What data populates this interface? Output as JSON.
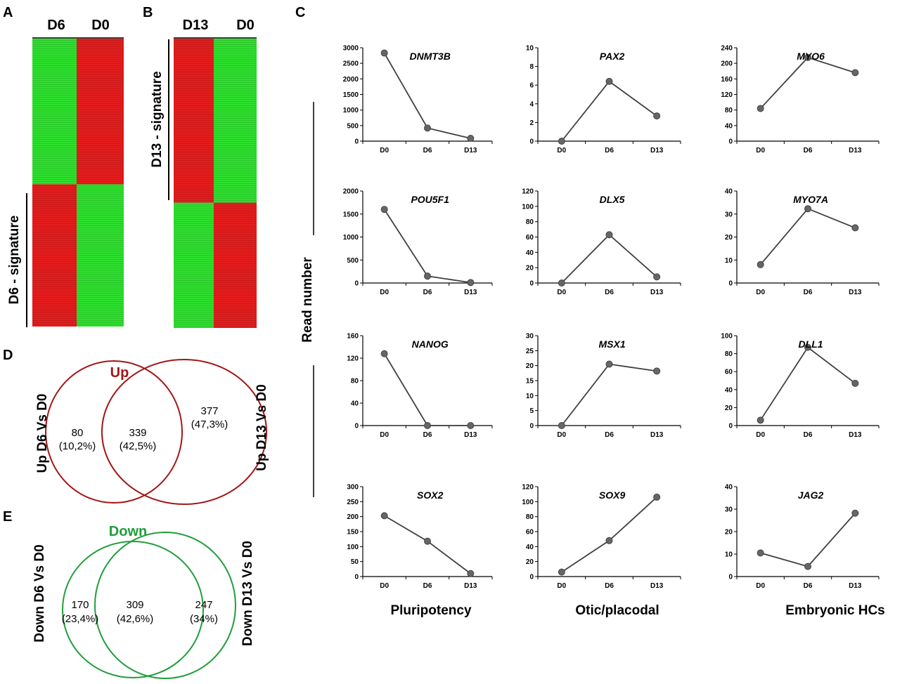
{
  "panel_letters": {
    "a": "A",
    "b": "B",
    "c": "C",
    "d": "D",
    "e": "E"
  },
  "heatmap_a": {
    "col1": "D6",
    "col2": "D0",
    "signature": "D6 - signature",
    "top_fraction": 0.506,
    "colors": {
      "red": "#e51d1d",
      "green": "#2ee02e"
    }
  },
  "heatmap_b": {
    "col1": "D13",
    "col2": "D0",
    "signature": "D13 - signature",
    "top_fraction": 0.567,
    "colors": {
      "red": "#e51d1d",
      "green": "#2ee02e"
    }
  },
  "y_axis_label": "Read number",
  "categories": [
    "Pluripotency",
    "Otic/placodal",
    "Embryonic HCs"
  ],
  "line_color": "#404040",
  "chart_data": [
    {
      "type": "line",
      "title": "DNMT3B",
      "x": [
        "D0",
        "D6",
        "D13"
      ],
      "values": [
        2830,
        420,
        90
      ],
      "yticks": [
        0,
        500,
        1000,
        1500,
        2000,
        2500,
        3000
      ],
      "ylim": [
        0,
        3000
      ]
    },
    {
      "type": "line",
      "title": "PAX2",
      "x": [
        "D0",
        "D6",
        "D13"
      ],
      "values": [
        0,
        6.4,
        2.7
      ],
      "yticks": [
        0,
        2,
        4,
        6,
        8,
        10
      ],
      "ylim": [
        0,
        10
      ]
    },
    {
      "type": "line",
      "title": "MYO6",
      "x": [
        "D0",
        "D6",
        "D13"
      ],
      "values": [
        84,
        215,
        176
      ],
      "yticks": [
        0,
        40,
        80,
        120,
        160,
        200,
        240
      ],
      "ylim": [
        0,
        240
      ]
    },
    {
      "type": "line",
      "title": "POU5F1",
      "x": [
        "D0",
        "D6",
        "D13"
      ],
      "values": [
        1600,
        150,
        10
      ],
      "yticks": [
        0,
        500,
        1000,
        1500,
        2000
      ],
      "ylim": [
        0,
        2000
      ]
    },
    {
      "type": "line",
      "title": "DLX5",
      "x": [
        "D0",
        "D6",
        "D13"
      ],
      "values": [
        0,
        63,
        8
      ],
      "yticks": [
        0,
        20,
        40,
        60,
        80,
        100,
        120
      ],
      "ylim": [
        0,
        120
      ]
    },
    {
      "type": "line",
      "title": "MYO7A",
      "x": [
        "D0",
        "D6",
        "D13"
      ],
      "values": [
        8,
        32.3,
        24
      ],
      "yticks": [
        0,
        10,
        20,
        30,
        40
      ],
      "ylim": [
        0,
        40
      ]
    },
    {
      "type": "line",
      "title": "NANOG",
      "x": [
        "D0",
        "D6",
        "D13"
      ],
      "values": [
        128,
        0,
        0
      ],
      "yticks": [
        0,
        40,
        80,
        120,
        160
      ],
      "ylim": [
        0,
        160
      ]
    },
    {
      "type": "line",
      "title": "MSX1",
      "x": [
        "D0",
        "D6",
        "D13"
      ],
      "values": [
        0,
        20.5,
        18.2
      ],
      "yticks": [
        0,
        5,
        10,
        15,
        20,
        25,
        30
      ],
      "ylim": [
        0,
        30
      ]
    },
    {
      "type": "line",
      "title": "DLL1",
      "x": [
        "D0",
        "D6",
        "D13"
      ],
      "values": [
        6,
        87,
        47
      ],
      "yticks": [
        0,
        20,
        40,
        60,
        80,
        100
      ],
      "ylim": [
        0,
        100
      ]
    },
    {
      "type": "line",
      "title": "SOX2",
      "x": [
        "D0",
        "D6",
        "D13"
      ],
      "values": [
        203,
        118,
        10
      ],
      "yticks": [
        0,
        50,
        100,
        150,
        200,
        250,
        300
      ],
      "ylim": [
        0,
        300
      ]
    },
    {
      "type": "line",
      "title": "SOX9",
      "x": [
        "D0",
        "D6",
        "D13"
      ],
      "values": [
        6,
        48,
        106
      ],
      "yticks": [
        0,
        20,
        40,
        60,
        80,
        100,
        120
      ],
      "ylim": [
        0,
        120
      ]
    },
    {
      "type": "line",
      "title": "JAG2",
      "x": [
        "D0",
        "D6",
        "D13"
      ],
      "values": [
        10.5,
        4.5,
        28.2
      ],
      "yticks": [
        0,
        10,
        20,
        30,
        40
      ],
      "ylim": [
        0,
        40
      ]
    }
  ],
  "venn_up": {
    "title": "Up",
    "left_label": "Up D6 Vs D0",
    "right_label": "Up D13 Vs D0",
    "left_count": "80",
    "left_pct": "(10,2%)",
    "mid_count": "339",
    "mid_pct": "(42,5%)",
    "right_count": "377",
    "right_pct": "(47,3%)",
    "color": "#a31515"
  },
  "venn_down": {
    "title": "Down",
    "left_label": "Down D6 Vs D0",
    "right_label": "Down D13 Vs D0",
    "left_count": "170",
    "left_pct": "(23,4%)",
    "mid_count": "309",
    "mid_pct": "(42,6%)",
    "right_count": "247",
    "right_pct": "(34%)",
    "color": "#1f9e3a"
  }
}
